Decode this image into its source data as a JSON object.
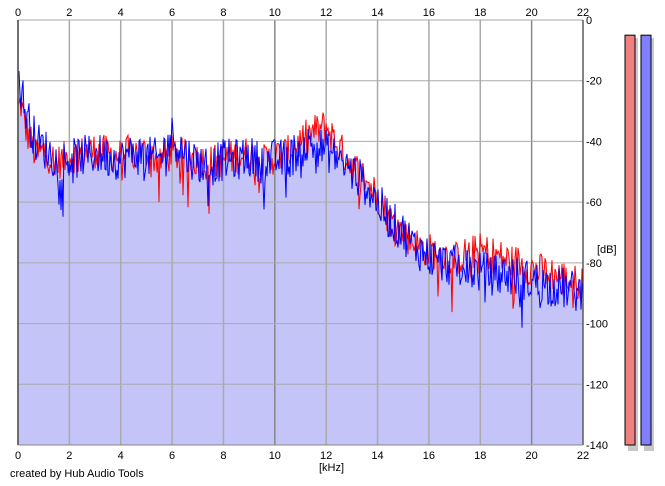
{
  "app": {
    "credit": "created by Hub Audio Tools"
  },
  "chart_data": {
    "type": "area",
    "xlabel": "[kHz]",
    "ylabel": "[dB]",
    "xlim": [
      0,
      22
    ],
    "ylim": [
      -140,
      0
    ],
    "x_ticks": [
      "0",
      "2",
      "4",
      "6",
      "8",
      "10",
      "12",
      "14",
      "16",
      "18",
      "20",
      "22"
    ],
    "y_ticks": [
      "0",
      "-20",
      "-40",
      "-60",
      "-80",
      "-100",
      "-120",
      "-140"
    ],
    "grid": true,
    "fill_color": "#c4c4f9",
    "series": [
      {
        "color": "#ff0000",
        "x": [
          0,
          0.1,
          0.3,
          0.5,
          0.7,
          1,
          1.5,
          2,
          2.5,
          3,
          3.5,
          4,
          4.5,
          5,
          5.5,
          6,
          6.5,
          7,
          7.5,
          8,
          8.5,
          9,
          9.5,
          10,
          10.5,
          11,
          11.5,
          12,
          12.5,
          13,
          13.5,
          14,
          14.5,
          15,
          15.5,
          16,
          16.5,
          17,
          17.5,
          18,
          18.5,
          19,
          19.5,
          20,
          20.5,
          21,
          21.5,
          22
        ],
        "y": [
          -30,
          -27,
          -36,
          -40,
          -45,
          -43,
          -47,
          -45,
          -44,
          -43,
          -44,
          -45,
          -43,
          -44,
          -46,
          -44,
          -45,
          -46,
          -47,
          -46,
          -45,
          -44,
          -47,
          -45,
          -44,
          -40,
          -37,
          -35,
          -42,
          -48,
          -52,
          -58,
          -66,
          -70,
          -74,
          -76,
          -77,
          -79,
          -77,
          -76,
          -77,
          -79,
          -80,
          -82,
          -83,
          -84,
          -86,
          -87
        ]
      },
      {
        "color": "#0000ff",
        "x": [
          0,
          0.1,
          0.3,
          0.5,
          0.7,
          1,
          1.5,
          2,
          2.5,
          3,
          3.5,
          4,
          4.5,
          5,
          5.5,
          6,
          6.5,
          7,
          7.5,
          8,
          8.5,
          9,
          9.5,
          10,
          10.5,
          11,
          11.5,
          12,
          12.5,
          13,
          13.5,
          14,
          14.5,
          15,
          15.5,
          16,
          16.5,
          17,
          17.5,
          18,
          18.5,
          19,
          19.5,
          20,
          20.5,
          21,
          21.5,
          22
        ],
        "y": [
          -18,
          -22,
          -30,
          -35,
          -40,
          -42,
          -46,
          -46,
          -45,
          -44,
          -45,
          -46,
          -44,
          -45,
          -46,
          -38,
          -44,
          -47,
          -48,
          -46,
          -46,
          -45,
          -47,
          -46,
          -46,
          -42,
          -41,
          -43,
          -46,
          -50,
          -54,
          -60,
          -66,
          -70,
          -75,
          -78,
          -80,
          -81,
          -82,
          -83,
          -84,
          -84,
          -85,
          -86,
          -87,
          -88,
          -89,
          -90
        ]
      }
    ],
    "level_meters": [
      {
        "color": "#f08080",
        "value": -5
      },
      {
        "color": "#8080ff",
        "value": -5
      }
    ]
  }
}
